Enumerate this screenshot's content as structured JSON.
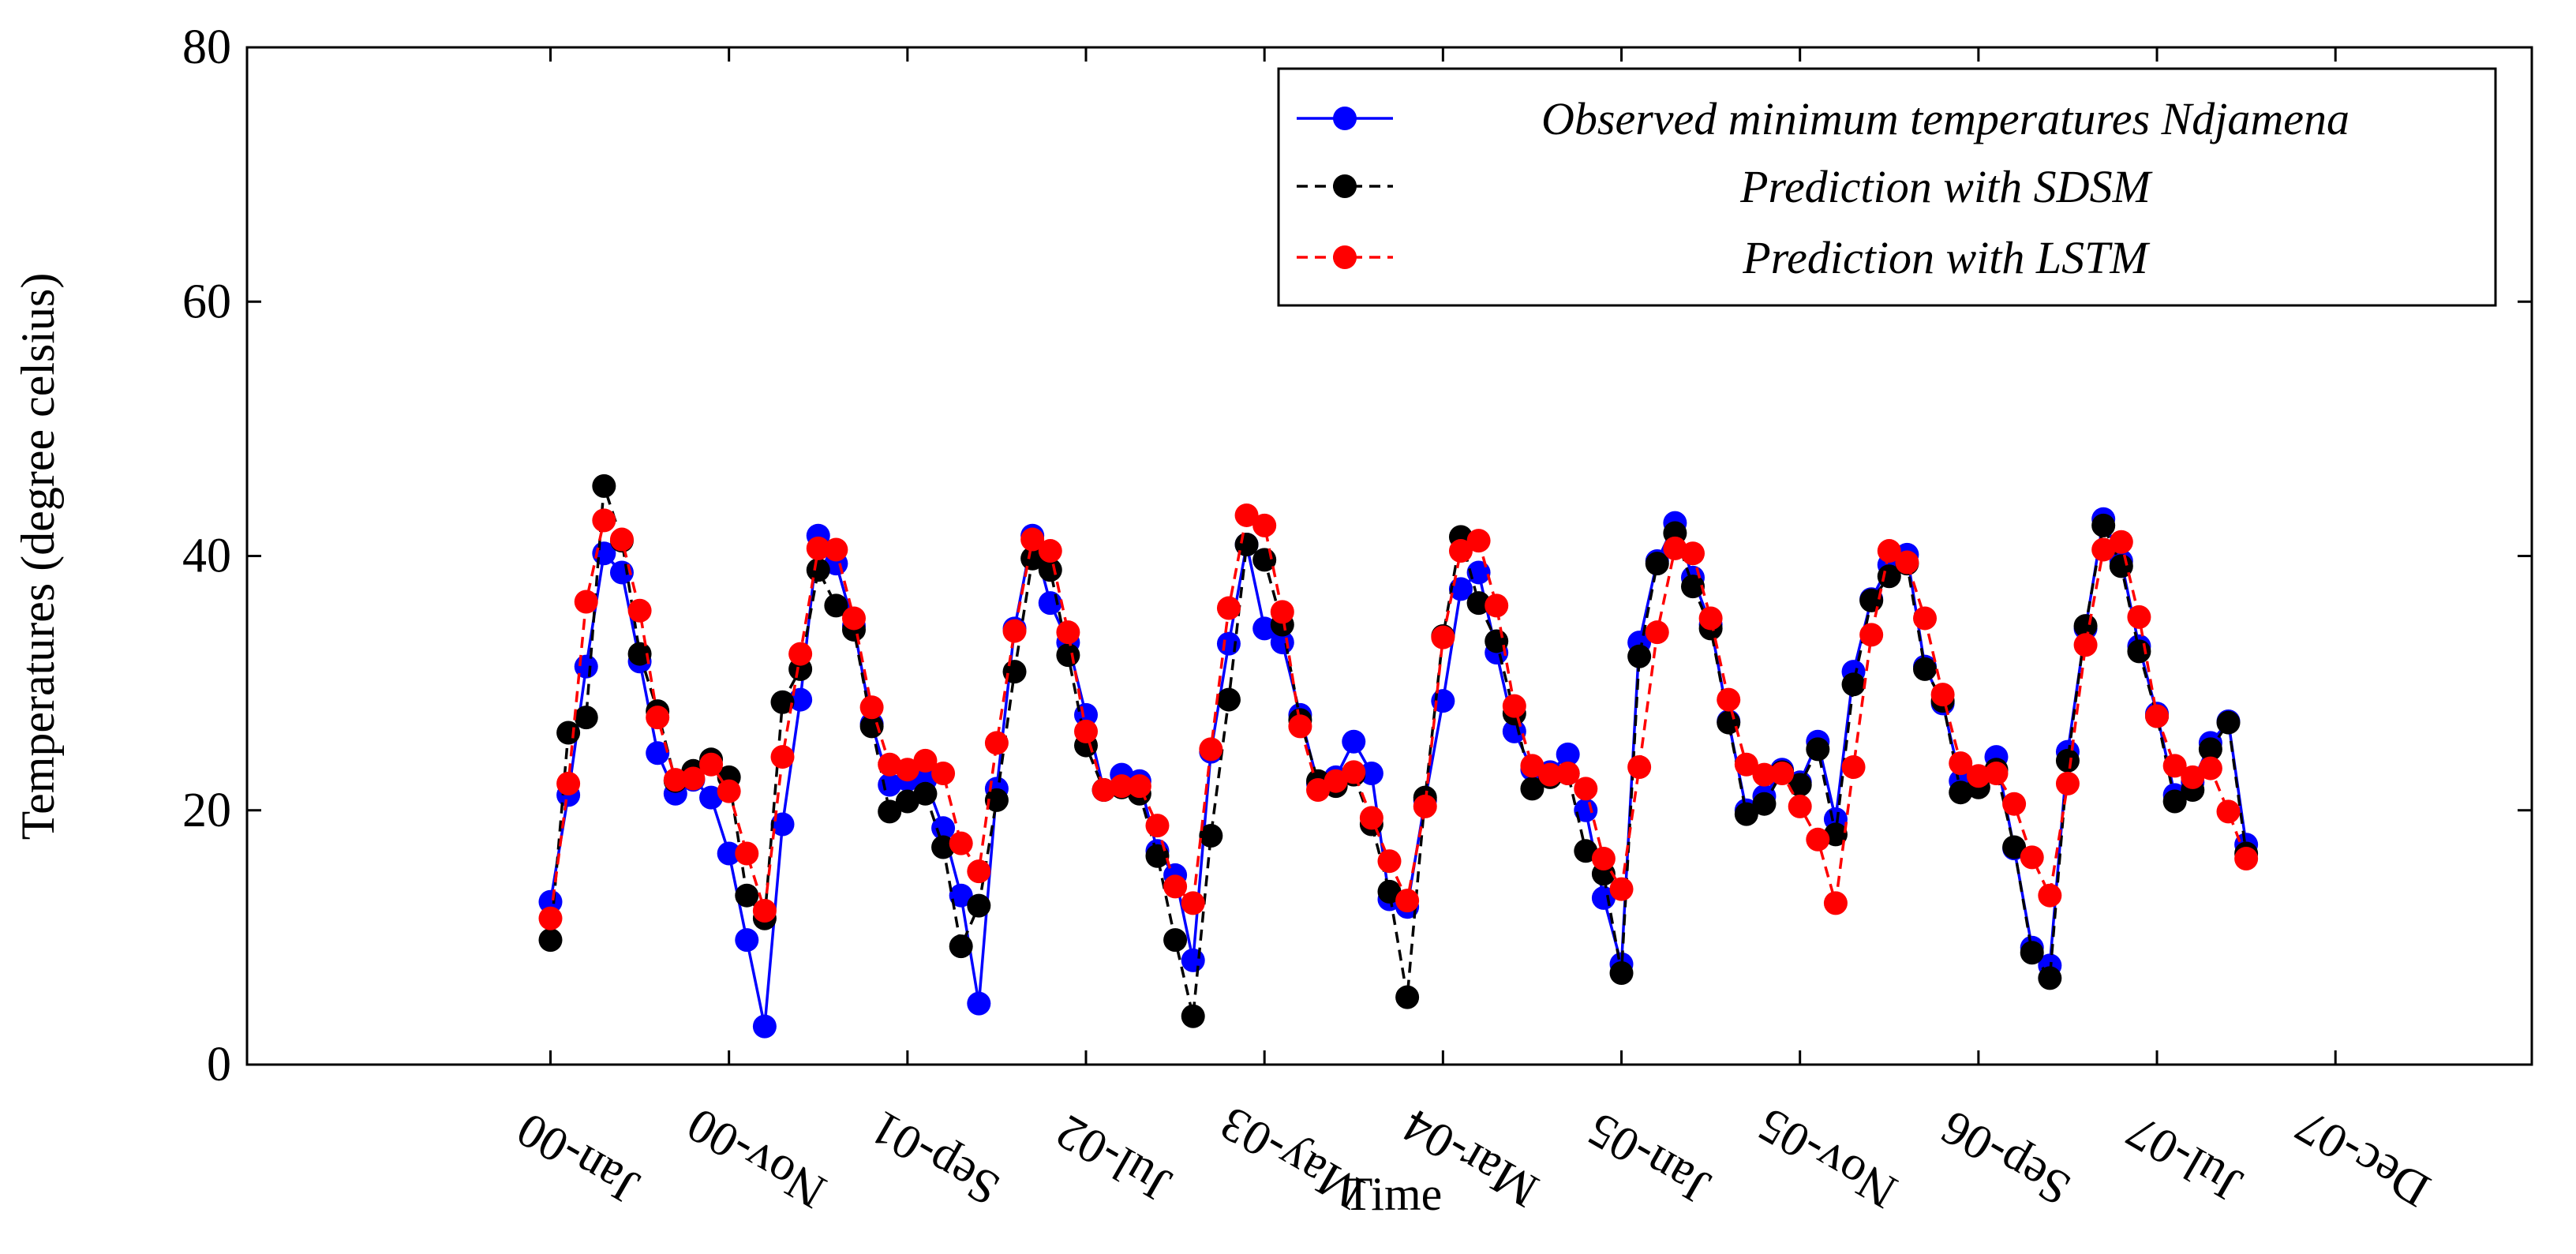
{
  "chart_data": {
    "type": "line",
    "title": "",
    "xlabel": "Time",
    "ylabel": "Temperatures (degree celsius)",
    "ylim": [
      0,
      80
    ],
    "yticks": [
      0,
      20,
      40,
      60,
      80
    ],
    "xlim": [
      -17,
      111
    ],
    "xticks": [
      {
        "label": "Jan-00",
        "x": 0
      },
      {
        "label": "Nov-00",
        "x": 10
      },
      {
        "label": "Sep-01",
        "x": 20
      },
      {
        "label": "Jul-02",
        "x": 30
      },
      {
        "label": "May-03",
        "x": 40
      },
      {
        "label": "Mar-04",
        "x": 50
      },
      {
        "label": "Jan-05",
        "x": 60
      },
      {
        "label": "Nov-05",
        "x": 70
      },
      {
        "label": "Sep-06",
        "x": 80
      },
      {
        "label": "Jul-07",
        "x": 90
      },
      {
        "label": "Dec-07",
        "x": 100
      }
    ],
    "grid": false,
    "legend_position": "top-right",
    "series": [
      {
        "name": "Observed minimum temperatures Ndjamena",
        "color": "#0000ff",
        "line": "solid",
        "values": [
          12.8,
          21.2,
          31.3,
          40.2,
          38.7,
          31.7,
          24.5,
          21.3,
          22.4,
          21.0,
          16.6,
          9.8,
          3.0,
          18.9,
          28.7,
          41.6,
          39.4,
          34.5,
          26.8,
          22.0,
          22.4,
          22.4,
          18.6,
          13.3,
          4.8,
          21.7,
          34.3,
          41.6,
          36.3,
          33.2,
          27.5,
          21.6,
          22.8,
          22.3,
          16.8,
          14.9,
          8.2,
          24.6,
          33.1,
          40.9,
          34.3,
          33.2,
          27.5,
          22.1,
          22.6,
          25.4,
          22.9,
          13.0,
          12.4,
          20.8,
          28.6,
          37.4,
          38.7,
          32.4,
          26.2,
          23.2,
          23.0,
          24.4,
          20.0,
          13.1,
          7.9,
          33.2,
          39.6,
          42.6,
          38.3,
          34.6,
          27.0,
          20.0,
          21.1,
          23.2,
          22.2,
          25.4,
          19.3,
          30.9,
          36.6,
          39.3,
          40.1,
          31.3,
          28.4,
          22.3,
          22.5,
          24.2,
          17.0,
          9.2,
          7.8,
          24.6,
          34.3,
          42.9,
          39.6,
          32.9,
          27.6,
          21.2,
          22.2,
          25.3,
          27.0,
          17.3
        ]
      },
      {
        "name": "Prediction with SDSM",
        "color": "#000000",
        "line": "dashed",
        "values": [
          9.8,
          26.1,
          27.3,
          45.5,
          41.2,
          32.3,
          27.8,
          22.3,
          23.1,
          24.0,
          22.6,
          13.3,
          11.5,
          28.5,
          31.1,
          38.9,
          36.1,
          34.2,
          26.6,
          19.9,
          20.7,
          21.3,
          17.1,
          9.3,
          12.5,
          20.8,
          30.9,
          39.8,
          38.9,
          32.2,
          25.1,
          21.6,
          21.8,
          21.3,
          16.4,
          9.8,
          3.8,
          18.0,
          28.7,
          40.9,
          39.7,
          34.6,
          27.1,
          22.3,
          21.9,
          22.8,
          18.9,
          13.6,
          5.3,
          21.0,
          33.7,
          41.5,
          36.3,
          33.3,
          27.6,
          21.7,
          22.6,
          22.9,
          16.8,
          15.0,
          7.2,
          32.1,
          39.4,
          41.8,
          37.6,
          34.3,
          26.9,
          19.7,
          20.5,
          23.0,
          22.0,
          24.8,
          18.1,
          29.9,
          36.5,
          38.4,
          39.4,
          31.1,
          28.6,
          21.4,
          21.8,
          23.2,
          17.1,
          8.8,
          6.8,
          23.9,
          34.5,
          42.4,
          39.2,
          32.5,
          27.4,
          20.7,
          21.6,
          24.8,
          26.9,
          16.6
        ]
      },
      {
        "name": "Prediction with LSTM",
        "color": "#ff0000",
        "line": "dashed",
        "values": [
          11.5,
          22.1,
          36.4,
          42.8,
          41.3,
          35.7,
          27.3,
          22.4,
          22.5,
          23.6,
          21.5,
          16.6,
          12.1,
          24.2,
          32.3,
          40.6,
          40.5,
          35.1,
          28.1,
          23.6,
          23.2,
          23.9,
          22.9,
          17.4,
          15.2,
          25.3,
          34.1,
          41.3,
          40.4,
          34.0,
          26.2,
          21.6,
          21.9,
          21.9,
          18.8,
          14.0,
          12.7,
          24.8,
          35.9,
          43.2,
          42.4,
          35.6,
          26.6,
          21.6,
          22.3,
          23.0,
          19.4,
          16.0,
          12.9,
          20.3,
          33.6,
          40.4,
          41.2,
          36.1,
          28.2,
          23.5,
          22.8,
          22.9,
          21.7,
          16.2,
          13.8,
          23.4,
          34.0,
          40.6,
          40.2,
          35.1,
          28.7,
          23.6,
          22.8,
          22.9,
          20.3,
          17.7,
          12.7,
          23.4,
          33.8,
          40.4,
          39.5,
          35.1,
          29.1,
          23.7,
          22.7,
          22.9,
          20.5,
          16.3,
          13.3,
          22.1,
          33.0,
          40.5,
          41.1,
          35.2,
          27.4,
          23.5,
          22.6,
          23.3,
          19.9,
          16.2
        ]
      }
    ]
  }
}
